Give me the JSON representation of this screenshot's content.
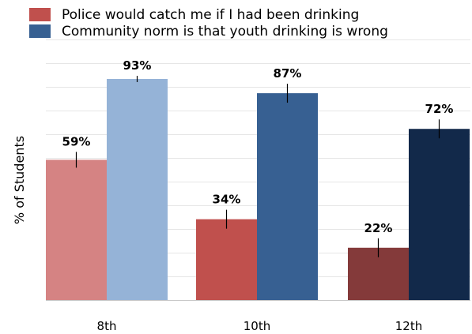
{
  "chart_data": {
    "type": "bar",
    "categories": [
      "8th",
      "10th",
      "12th"
    ],
    "ylabel": "% of Students",
    "xlabel": "",
    "ylim": [
      0,
      93
    ],
    "grid": true,
    "legend_position": "top-left",
    "series": [
      {
        "name": "Police would catch me if I had been drinking",
        "values": [
          59,
          34,
          22
        ],
        "labels": [
          "59%",
          "34%",
          "22%"
        ],
        "colors": [
          "#d58383",
          "#c0504d",
          "#843a3a"
        ],
        "legend_color": "#c0504d"
      },
      {
        "name": "Community norm is that youth drinking is wrong",
        "values": [
          93,
          87,
          72
        ],
        "labels": [
          "93%",
          "87%",
          "72%"
        ],
        "colors": [
          "#95b3d7",
          "#376092",
          "#12294a"
        ],
        "legend_color": "#376092"
      }
    ]
  }
}
